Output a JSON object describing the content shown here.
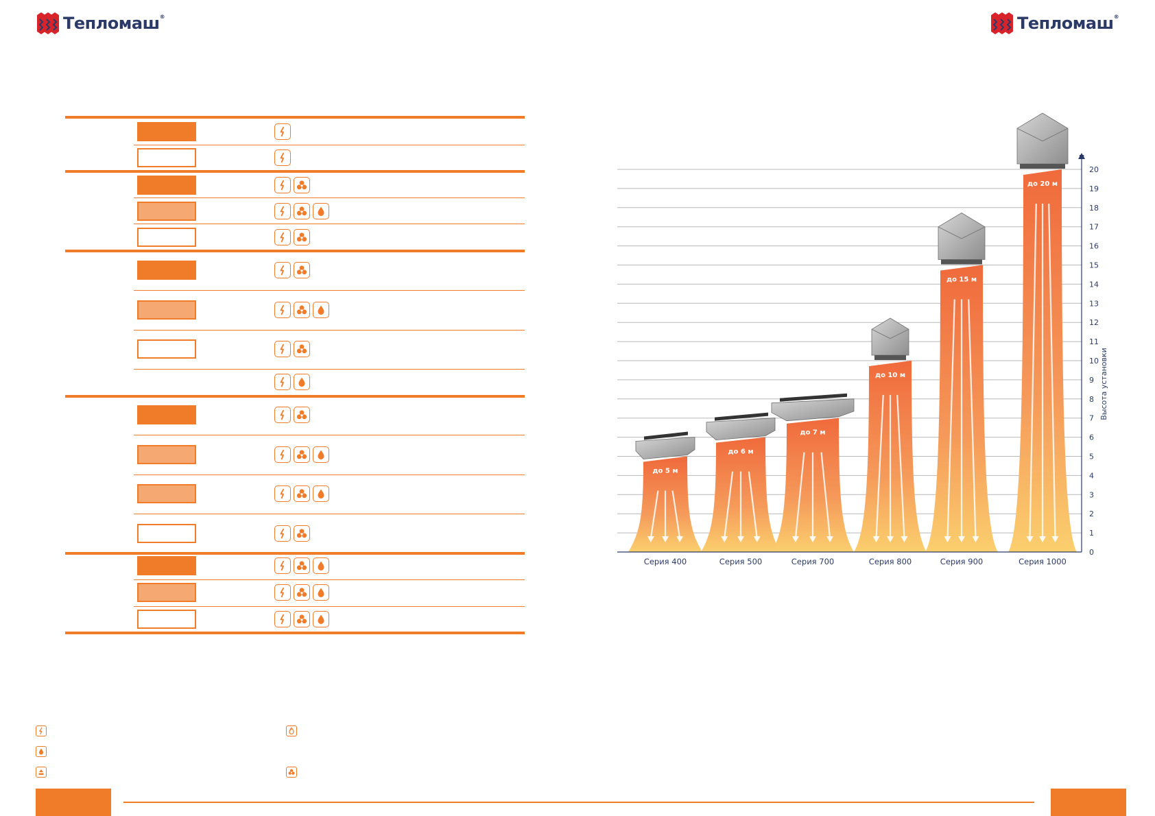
{
  "brand": {
    "name": "Тепломаш",
    "reg": "®"
  },
  "colors": {
    "accent": "#f07c2a",
    "accent_light": "#f5a872",
    "text": "#2b3a67"
  },
  "table": {
    "rows": [
      {
        "swatch": "full",
        "icons": [
          "electric-icon"
        ]
      },
      {
        "swatch": "empty",
        "icons": [
          "electric-icon"
        ]
      },
      {
        "swatch": "full",
        "icons": [
          "electric-icon",
          "fan-icon"
        ]
      },
      {
        "swatch": "light",
        "icons": [
          "electric-icon",
          "fan-icon",
          "water-icon"
        ]
      },
      {
        "swatch": "empty",
        "icons": [
          "electric-icon",
          "fan-icon"
        ]
      },
      {
        "swatch": "full",
        "icons": [
          "electric-icon",
          "fan-icon"
        ]
      },
      {
        "swatch": "light",
        "icons": [
          "electric-icon",
          "fan-icon",
          "water-icon"
        ]
      },
      {
        "swatch": "empty",
        "icons": [
          "electric-icon",
          "fan-icon"
        ]
      },
      {
        "swatch": "none",
        "icons": [
          "electric-icon",
          "water-icon"
        ]
      },
      {
        "swatch": "full",
        "icons": [
          "electric-icon",
          "fan-icon"
        ]
      },
      {
        "swatch": "light",
        "icons": [
          "electric-icon",
          "fan-icon",
          "water-icon"
        ]
      },
      {
        "swatch": "light",
        "icons": [
          "electric-icon",
          "fan-icon",
          "water-icon"
        ]
      },
      {
        "swatch": "empty",
        "icons": [
          "electric-icon",
          "fan-icon"
        ]
      },
      {
        "swatch": "full",
        "icons": [
          "electric-icon",
          "fan-icon",
          "water-icon"
        ]
      },
      {
        "swatch": "light",
        "icons": [
          "electric-icon",
          "fan-icon",
          "water-icon"
        ]
      },
      {
        "swatch": "empty",
        "icons": [
          "electric-icon",
          "fan-icon",
          "water-icon"
        ]
      }
    ]
  },
  "chart_data": {
    "type": "bar",
    "categories": [
      "Серия 400",
      "Серия 500",
      "Серия 700",
      "Серия 800",
      "Серия 900",
      "Серия 1000"
    ],
    "values": [
      5,
      6,
      7,
      10,
      15,
      20
    ],
    "data_labels": [
      "до 5 м",
      "до 6 м",
      "до 7 м",
      "до 10 м",
      "до 15 м",
      "до 20 м"
    ],
    "ylabel": "Высота установки",
    "yunit": "м",
    "ylim": [
      0,
      20
    ],
    "yticks": [
      0,
      1,
      2,
      3,
      4,
      5,
      6,
      7,
      8,
      9,
      10,
      11,
      12,
      13,
      14,
      15,
      16,
      17,
      18,
      19,
      20
    ],
    "grid": true
  },
  "legend": {
    "icons": [
      "electric-icon",
      "gas-icon",
      "water-icon",
      "fan-icon",
      "steam-icon"
    ]
  }
}
